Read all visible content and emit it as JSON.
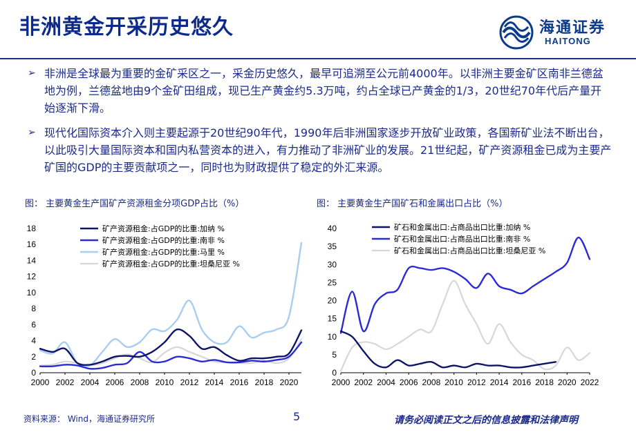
{
  "header": {
    "title": "非洲黄金开采历史悠久",
    "logo_cn": "海通证券",
    "logo_en": "HAITONG"
  },
  "bullets": [
    "非洲是全球最为重要的金矿采区之一，采金历史悠久，最早可追溯至公元前4000年。以非洲主要金矿区南非兰德盆地为例，兰德盆地由9个金矿田组成，现已生产黄金约5.3万吨，约占全球已产黄金的1/3，20世纪70年代后产量开始逐渐下滑。",
    "现代化国际资本介入则主要起源于20世纪90年代，1990年后非洲国家逐步开放矿业政策，各国新矿业法不断出台，以此吸引大量国际资本和国内私营资本的进入，有力推动了非洲矿业的发展。21世纪起，矿产资源租金已成为主要产矿国的GDP的主要贡献项之一，同时也为财政提供了稳定的外汇来源。"
  ],
  "bullet_marker": "➢",
  "footer": {
    "source": "资料来源：  Wind，海通证券研究所",
    "page": "5",
    "disclaimer": "请务必阅读正文之后的信息披露和法律声明"
  },
  "colors": {
    "navy": "#0d1466",
    "blue": "#2a2ad6",
    "light_blue": "#a9cdef",
    "light_gray": "#d7d7d7"
  },
  "chart_data": [
    {
      "type": "line",
      "title": "图：  主要黄金生产国矿产资源租金分项GDP占比（%）",
      "x": [
        2000,
        2001,
        2002,
        2003,
        2004,
        2005,
        2006,
        2007,
        2008,
        2009,
        2010,
        2011,
        2012,
        2013,
        2014,
        2015,
        2016,
        2017,
        2018,
        2019,
        2020,
        2021
      ],
      "x_ticks": [
        "2000",
        "2002",
        "2004",
        "2006",
        "2008",
        "2010",
        "2012",
        "2014",
        "2016",
        "2018",
        "2020"
      ],
      "ylim": [
        0,
        18
      ],
      "y_ticks": [
        "0",
        "2",
        "4",
        "6",
        "8",
        "10",
        "12",
        "14",
        "16",
        "18"
      ],
      "series": [
        {
          "name": "矿产资源租金:占GDP的比重:加纳 %",
          "color": "#0d1466",
          "values": [
            3.0,
            2.6,
            3.0,
            1.2,
            1.0,
            1.4,
            2.0,
            2.1,
            2.0,
            2.6,
            3.8,
            5.4,
            4.6,
            3.0,
            3.2,
            2.2,
            1.5,
            1.8,
            1.8,
            2.0,
            2.4,
            5.3
          ]
        },
        {
          "name": "矿产资源租金:占GDP的比重:南非 %",
          "color": "#2a2ad6",
          "values": [
            0.8,
            0.8,
            1.0,
            0.9,
            0.5,
            0.6,
            1.0,
            1.2,
            2.6,
            1.4,
            1.4,
            2.0,
            1.8,
            1.4,
            1.6,
            1.3,
            1.3,
            1.5,
            1.4,
            1.6,
            2.0,
            3.8
          ]
        },
        {
          "name": "矿产资源租金:占GDP的比重:马里 %",
          "color": "#a9cdef",
          "values": [
            2.8,
            2.4,
            3.8,
            1.2,
            0.9,
            2.6,
            4.2,
            3.2,
            3.8,
            5.4,
            5.2,
            6.6,
            9.0,
            5.4,
            3.8,
            3.8,
            5.8,
            4.4,
            5.0,
            5.4,
            7.0,
            16.2
          ]
        },
        {
          "name": "矿产资源租金:占GDP的比重:坦桑尼亚 %",
          "color": "#d7d7d7",
          "values": [
            0.9,
            1.0,
            1.4,
            1.2,
            0.9,
            1.2,
            1.8,
            2.3,
            1.8,
            1.3,
            2.5,
            3.2,
            2.6,
            2.0,
            1.4,
            1.3,
            1.2,
            1.2,
            1.5,
            1.2,
            1.8,
            4.2
          ]
        }
      ]
    },
    {
      "type": "line",
      "title": "图：  主要黄金生产国矿石和金属出口占比（%）",
      "x": [
        2000,
        2001,
        2002,
        2003,
        2004,
        2005,
        2006,
        2007,
        2008,
        2009,
        2010,
        2011,
        2012,
        2013,
        2014,
        2015,
        2016,
        2017,
        2018,
        2019,
        2020,
        2021,
        2022
      ],
      "x_ticks": [
        "2000",
        "2002",
        "2004",
        "2006",
        "2008",
        "2010",
        "2012",
        "2014",
        "2016",
        "2018",
        "2020",
        "2022"
      ],
      "ylim": [
        0,
        40
      ],
      "y_ticks": [
        "0",
        "5",
        "10",
        "15",
        "20",
        "25",
        "30",
        "35",
        "40"
      ],
      "series": [
        {
          "name": "矿石和金属出口:占商品出口比重:加纳 %",
          "color": "#0d1466",
          "values": [
            11.5,
            10.0,
            6.0,
            2.5,
            1.5,
            3.5,
            2.0,
            2.5,
            3.0,
            1.5,
            2.0,
            1.5,
            2.5,
            2.0,
            2.0,
            1.5,
            1.5,
            2.0,
            2.5,
            3.0,
            null,
            null,
            null
          ]
        },
        {
          "name": "矿石和金属出口:占商品出口比重:南非 %",
          "color": "#2a2ad6",
          "values": [
            11.0,
            22.5,
            11.5,
            19.0,
            22.0,
            23.0,
            29.0,
            29.0,
            28.5,
            29.0,
            28.0,
            26.0,
            23.5,
            27.5,
            24.0,
            23.0,
            22.0,
            24.0,
            26.0,
            28.0,
            30.5,
            37.5,
            31.5
          ]
        },
        {
          "name": "矿石和金属出口:占商品出口比重:坦桑尼亚 %",
          "color": "#d7d7d7",
          "values": [
            0.5,
            7.0,
            8.5,
            8.0,
            6.5,
            8.0,
            10.0,
            12.0,
            11.5,
            19.0,
            25.5,
            19.0,
            13.5,
            8.0,
            13.5,
            8.5,
            5.0,
            3.5,
            1.0,
            2.0,
            7.0,
            3.5,
            5.5
          ]
        }
      ]
    }
  ]
}
